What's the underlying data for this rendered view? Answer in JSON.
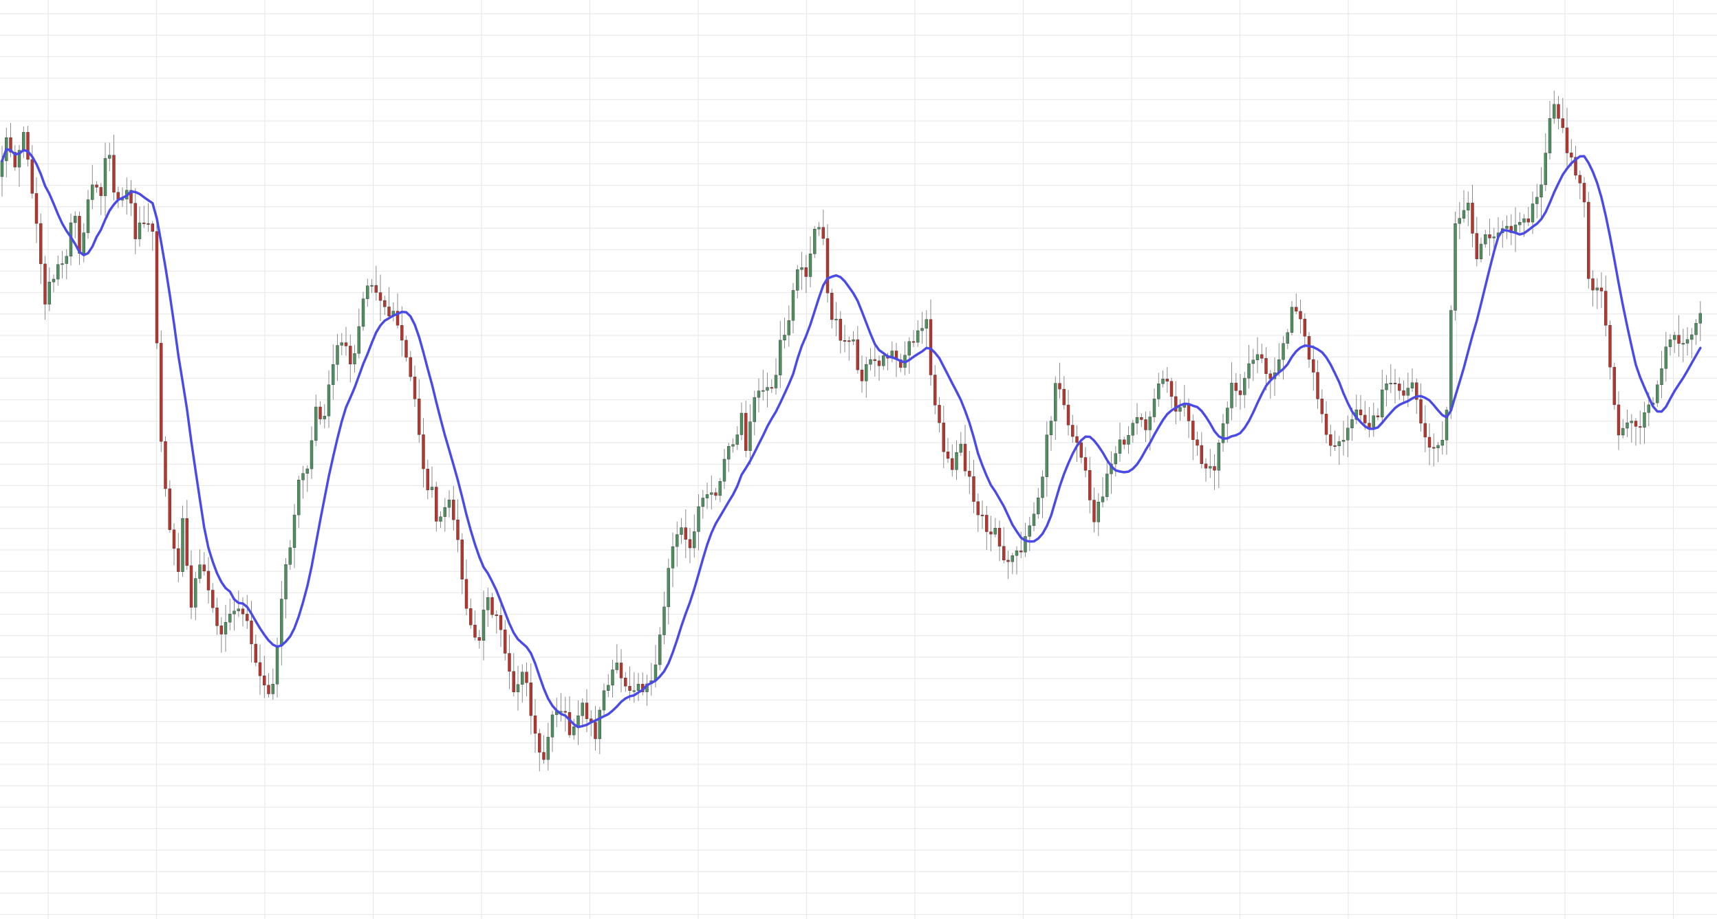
{
  "colors": {
    "background": "#ffffff",
    "grid": "#e6e6e6",
    "up": "#4f8f5f",
    "down": "#b8352e",
    "wick": "#8a8a8a",
    "ma": "#4a4ae8"
  },
  "chart_data": {
    "type": "candlestick",
    "title": "",
    "xlabel": "",
    "ylabel": "",
    "grid": true,
    "tick_labels_visible": false,
    "ylim": [
      0,
      1337
    ],
    "overlay": {
      "type": "moving-average",
      "window": 12
    },
    "keypoints": [
      [
        0,
        1080
      ],
      [
        12,
        1135
      ],
      [
        25,
        1090
      ],
      [
        40,
        1150
      ],
      [
        58,
        1000
      ],
      [
        70,
        900
      ],
      [
        88,
        950
      ],
      [
        100,
        960
      ],
      [
        112,
        1040
      ],
      [
        122,
        940
      ],
      [
        131,
        1050
      ],
      [
        138,
        1070
      ],
      [
        150,
        1050
      ],
      [
        160,
        1120
      ],
      [
        175,
        1040
      ],
      [
        190,
        1070
      ],
      [
        200,
        990
      ],
      [
        212,
        1010
      ],
      [
        226,
        1000
      ],
      [
        238,
        690
      ],
      [
        248,
        590
      ],
      [
        262,
        500
      ],
      [
        270,
        575
      ],
      [
        282,
        450
      ],
      [
        296,
        530
      ],
      [
        310,
        460
      ],
      [
        326,
        420
      ],
      [
        344,
        450
      ],
      [
        362,
        430
      ],
      [
        382,
        355
      ],
      [
        400,
        320
      ],
      [
        414,
        480
      ],
      [
        426,
        540
      ],
      [
        438,
        640
      ],
      [
        450,
        650
      ],
      [
        462,
        740
      ],
      [
        474,
        710
      ],
      [
        490,
        820
      ],
      [
        505,
        850
      ],
      [
        518,
        800
      ],
      [
        530,
        900
      ],
      [
        542,
        930
      ],
      [
        552,
        915
      ],
      [
        568,
        870
      ],
      [
        580,
        880
      ],
      [
        592,
        840
      ],
      [
        608,
        750
      ],
      [
        618,
        650
      ],
      [
        632,
        620
      ],
      [
        640,
        570
      ],
      [
        655,
        605
      ],
      [
        668,
        570
      ],
      [
        678,
        470
      ],
      [
        690,
        430
      ],
      [
        700,
        410
      ],
      [
        712,
        460
      ],
      [
        726,
        440
      ],
      [
        740,
        380
      ],
      [
        752,
        320
      ],
      [
        765,
        370
      ],
      [
        780,
        275
      ],
      [
        794,
        230
      ],
      [
        808,
        300
      ],
      [
        822,
        310
      ],
      [
        834,
        260
      ],
      [
        848,
        305
      ],
      [
        860,
        300
      ],
      [
        870,
        265
      ],
      [
        885,
        345
      ],
      [
        902,
        370
      ],
      [
        918,
        335
      ],
      [
        934,
        340
      ],
      [
        948,
        330
      ],
      [
        958,
        370
      ],
      [
        968,
        440
      ],
      [
        980,
        540
      ],
      [
        994,
        580
      ],
      [
        1006,
        530
      ],
      [
        1018,
        600
      ],
      [
        1034,
        630
      ],
      [
        1046,
        620
      ],
      [
        1060,
        670
      ],
      [
        1072,
        700
      ],
      [
        1082,
        730
      ],
      [
        1090,
        680
      ],
      [
        1100,
        750
      ],
      [
        1110,
        780
      ],
      [
        1124,
        760
      ],
      [
        1138,
        830
      ],
      [
        1150,
        860
      ],
      [
        1162,
        950
      ],
      [
        1176,
        940
      ],
      [
        1188,
        1000
      ],
      [
        1200,
        1010
      ],
      [
        1210,
        880
      ],
      [
        1222,
        860
      ],
      [
        1232,
        840
      ],
      [
        1242,
        850
      ],
      [
        1256,
        780
      ],
      [
        1270,
        810
      ],
      [
        1284,
        800
      ],
      [
        1298,
        830
      ],
      [
        1312,
        795
      ],
      [
        1324,
        830
      ],
      [
        1338,
        860
      ],
      [
        1350,
        875
      ],
      [
        1360,
        760
      ],
      [
        1372,
        700
      ],
      [
        1386,
        650
      ],
      [
        1398,
        700
      ],
      [
        1412,
        640
      ],
      [
        1426,
        595
      ],
      [
        1440,
        560
      ],
      [
        1452,
        570
      ],
      [
        1466,
        520
      ],
      [
        1480,
        530
      ],
      [
        1494,
        545
      ],
      [
        1506,
        595
      ],
      [
        1518,
        640
      ],
      [
        1530,
        720
      ],
      [
        1540,
        780
      ],
      [
        1550,
        750
      ],
      [
        1560,
        720
      ],
      [
        1572,
        690
      ],
      [
        1584,
        640
      ],
      [
        1596,
        580
      ],
      [
        1606,
        620
      ],
      [
        1618,
        660
      ],
      [
        1630,
        700
      ],
      [
        1642,
        690
      ],
      [
        1656,
        725
      ],
      [
        1670,
        715
      ],
      [
        1686,
        770
      ],
      [
        1700,
        780
      ],
      [
        1712,
        730
      ],
      [
        1726,
        760
      ],
      [
        1740,
        700
      ],
      [
        1752,
        665
      ],
      [
        1766,
        650
      ],
      [
        1780,
        700
      ],
      [
        1794,
        770
      ],
      [
        1808,
        765
      ],
      [
        1822,
        810
      ],
      [
        1836,
        820
      ],
      [
        1850,
        790
      ],
      [
        1862,
        810
      ],
      [
        1874,
        840
      ],
      [
        1886,
        900
      ],
      [
        1898,
        860
      ],
      [
        1910,
        810
      ],
      [
        1922,
        740
      ],
      [
        1934,
        700
      ],
      [
        1948,
        680
      ],
      [
        1962,
        700
      ],
      [
        1978,
        740
      ],
      [
        1992,
        715
      ],
      [
        2006,
        735
      ],
      [
        2018,
        780
      ],
      [
        2030,
        795
      ],
      [
        2044,
        760
      ],
      [
        2056,
        780
      ],
      [
        2070,
        720
      ],
      [
        2082,
        680
      ],
      [
        2094,
        690
      ],
      [
        2106,
        720
      ],
      [
        2118,
        1000
      ],
      [
        2128,
        1020
      ],
      [
        2136,
        1060
      ],
      [
        2148,
        960
      ],
      [
        2162,
        990
      ],
      [
        2176,
        1000
      ],
      [
        2190,
        995
      ],
      [
        2204,
        1010
      ],
      [
        2218,
        1005
      ],
      [
        2230,
        1030
      ],
      [
        2242,
        1060
      ],
      [
        2252,
        1120
      ],
      [
        2262,
        1190
      ],
      [
        2272,
        1160
      ],
      [
        2284,
        1110
      ],
      [
        2296,
        1080
      ],
      [
        2306,
        1060
      ],
      [
        2314,
        920
      ],
      [
        2326,
        910
      ],
      [
        2336,
        900
      ],
      [
        2348,
        760
      ],
      [
        2358,
        710
      ],
      [
        2370,
        720
      ],
      [
        2382,
        710
      ],
      [
        2396,
        730
      ],
      [
        2408,
        750
      ],
      [
        2418,
        800
      ],
      [
        2428,
        830
      ],
      [
        2440,
        850
      ],
      [
        2454,
        845
      ],
      [
        2466,
        850
      ],
      [
        2474,
        870
      ],
      [
        2482,
        880
      ],
      [
        2490,
        870
      ],
      [
        2496,
        860
      ]
    ]
  }
}
